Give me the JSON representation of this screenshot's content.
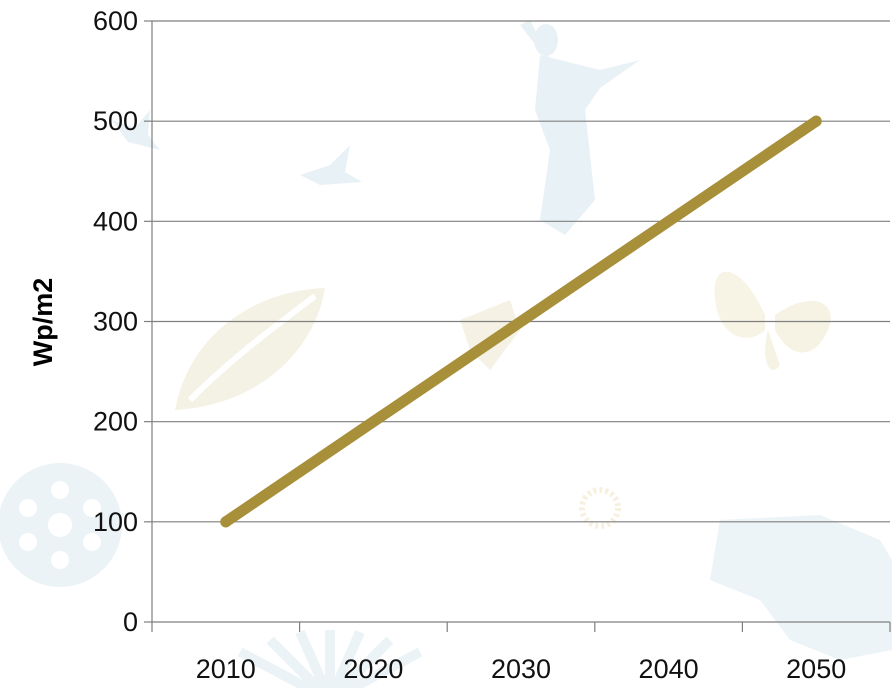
{
  "chart_data": {
    "type": "line",
    "title": "",
    "xlabel": "",
    "ylabel": "Wp/m2",
    "categories": [
      "2010",
      "2020",
      "2030",
      "2040",
      "2050"
    ],
    "x": [
      2010,
      2050
    ],
    "series": [
      {
        "name": "",
        "x": [
          2010,
          2050
        ],
        "values": [
          100,
          500
        ],
        "color": "#A88F3A"
      }
    ],
    "ylim": [
      0,
      600
    ],
    "yticks": [
      0,
      100,
      200,
      300,
      400,
      500,
      600
    ],
    "grid": "horizontal",
    "legend": "none"
  },
  "colors": {
    "line": "#A88F3A",
    "grid": "#7f7f7f",
    "axis": "#7f7f7f",
    "watermark": "#dce9f0"
  }
}
